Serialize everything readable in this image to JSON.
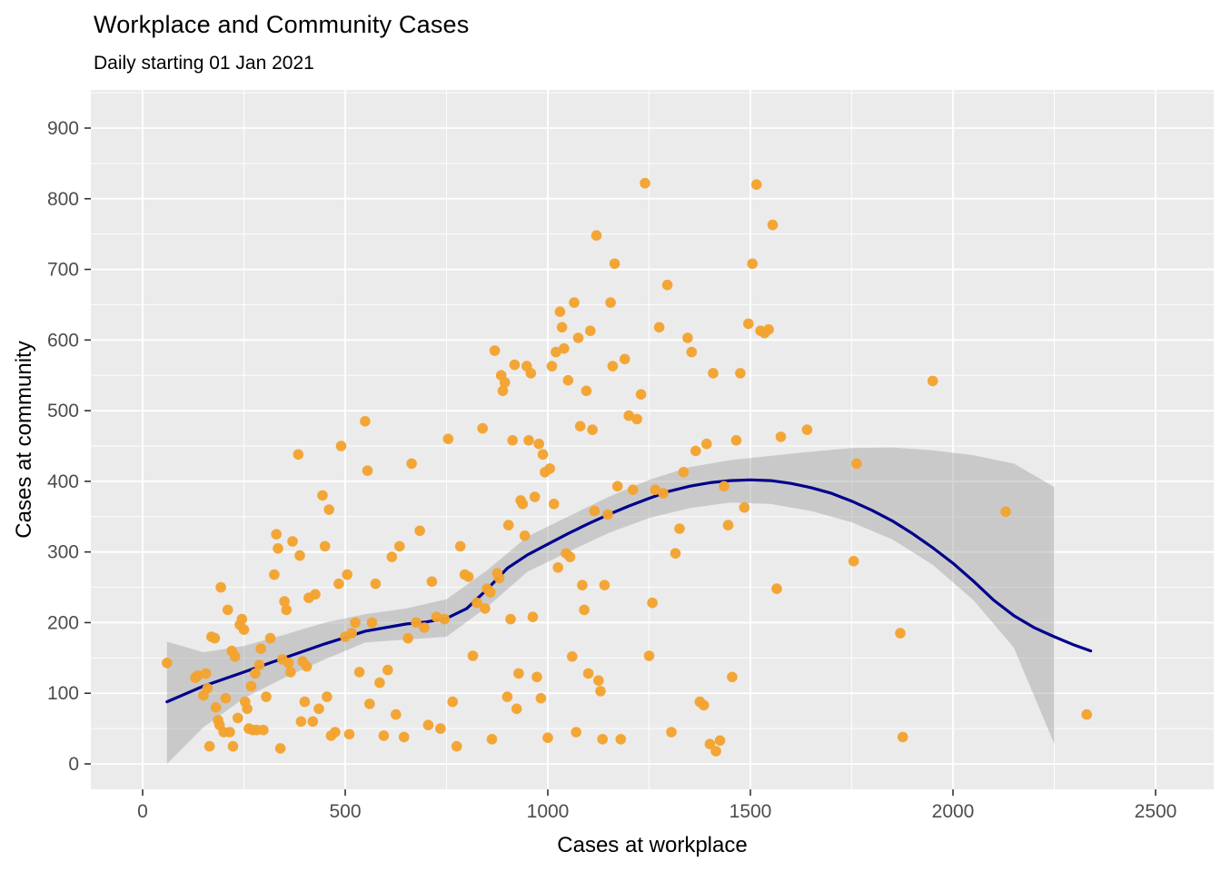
{
  "title": "Workplace and Community Cases",
  "subtitle": "Daily starting 01 Jan 2021",
  "chart_data": {
    "type": "scatter",
    "title": "Workplace and Community Cases",
    "subtitle": "Daily starting 01 Jan 2021",
    "xlabel": "Cases at workplace",
    "ylabel": "Cases at community",
    "xlim": [
      -130,
      2640
    ],
    "ylim": [
      -35,
      950
    ],
    "x_ticks": [
      0,
      500,
      1000,
      1500,
      2000,
      2500
    ],
    "y_ticks": [
      0,
      100,
      200,
      300,
      400,
      500,
      600,
      700,
      800,
      900
    ],
    "x_minor_ticks": [
      250,
      750,
      1250,
      1750,
      2250
    ],
    "y_minor_ticks": [
      50,
      150,
      250,
      350,
      450,
      550,
      650,
      750,
      850,
      950
    ],
    "grid": true,
    "legend": "none",
    "colors": {
      "point": "#F3A32F",
      "line": "#00008B",
      "ribbon": "#9B9B9B",
      "ribbon_opacity": 0.42,
      "panel": "#EBEBEB",
      "grid": "#FFFFFF",
      "tick_text": "#4D4D4D",
      "tick_mark": "#333333"
    },
    "points": [
      [
        60,
        143
      ],
      [
        130,
        122
      ],
      [
        136,
        125
      ],
      [
        150,
        97
      ],
      [
        156,
        128
      ],
      [
        160,
        107
      ],
      [
        165,
        25
      ],
      [
        170,
        180
      ],
      [
        178,
        178
      ],
      [
        181,
        80
      ],
      [
        186,
        62
      ],
      [
        190,
        55
      ],
      [
        193,
        250
      ],
      [
        200,
        45
      ],
      [
        205,
        93
      ],
      [
        210,
        218
      ],
      [
        215,
        45
      ],
      [
        220,
        160
      ],
      [
        223,
        25
      ],
      [
        228,
        152
      ],
      [
        235,
        65
      ],
      [
        240,
        197
      ],
      [
        245,
        205
      ],
      [
        250,
        190
      ],
      [
        253,
        88
      ],
      [
        258,
        78
      ],
      [
        262,
        50
      ],
      [
        268,
        110
      ],
      [
        272,
        48
      ],
      [
        278,
        128
      ],
      [
        282,
        48
      ],
      [
        288,
        140
      ],
      [
        292,
        163
      ],
      [
        298,
        48
      ],
      [
        305,
        95
      ],
      [
        315,
        178
      ],
      [
        325,
        268
      ],
      [
        330,
        325
      ],
      [
        334,
        305
      ],
      [
        340,
        22
      ],
      [
        345,
        148
      ],
      [
        350,
        230
      ],
      [
        355,
        218
      ],
      [
        360,
        143
      ],
      [
        365,
        130
      ],
      [
        370,
        315
      ],
      [
        384,
        438
      ],
      [
        388,
        295
      ],
      [
        391,
        60
      ],
      [
        395,
        145
      ],
      [
        400,
        88
      ],
      [
        405,
        138
      ],
      [
        410,
        235
      ],
      [
        420,
        60
      ],
      [
        426,
        240
      ],
      [
        435,
        78
      ],
      [
        444,
        380
      ],
      [
        450,
        308
      ],
      [
        455,
        95
      ],
      [
        460,
        360
      ],
      [
        465,
        40
      ],
      [
        475,
        45
      ],
      [
        484,
        255
      ],
      [
        490,
        450
      ],
      [
        500,
        180
      ],
      [
        505,
        268
      ],
      [
        510,
        42
      ],
      [
        516,
        185
      ],
      [
        525,
        200
      ],
      [
        535,
        130
      ],
      [
        549,
        485
      ],
      [
        555,
        415
      ],
      [
        560,
        85
      ],
      [
        566,
        200
      ],
      [
        575,
        255
      ],
      [
        585,
        115
      ],
      [
        595,
        40
      ],
      [
        605,
        133
      ],
      [
        615,
        293
      ],
      [
        625,
        70
      ],
      [
        634,
        308
      ],
      [
        645,
        38
      ],
      [
        655,
        178
      ],
      [
        664,
        425
      ],
      [
        675,
        200
      ],
      [
        684,
        330
      ],
      [
        695,
        193
      ],
      [
        705,
        55
      ],
      [
        714,
        258
      ],
      [
        725,
        208
      ],
      [
        735,
        50
      ],
      [
        745,
        205
      ],
      [
        754,
        460
      ],
      [
        765,
        88
      ],
      [
        775,
        25
      ],
      [
        784,
        308
      ],
      [
        795,
        268
      ],
      [
        804,
        265
      ],
      [
        815,
        153
      ],
      [
        825,
        228
      ],
      [
        839,
        475
      ],
      [
        845,
        220
      ],
      [
        850,
        248
      ],
      [
        858,
        243
      ],
      [
        862,
        35
      ],
      [
        869,
        585
      ],
      [
        875,
        270
      ],
      [
        880,
        263
      ],
      [
        885,
        550
      ],
      [
        889,
        528
      ],
      [
        894,
        540
      ],
      [
        900,
        95
      ],
      [
        903,
        338
      ],
      [
        908,
        205
      ],
      [
        913,
        458
      ],
      [
        918,
        565
      ],
      [
        923,
        78
      ],
      [
        928,
        128
      ],
      [
        933,
        373
      ],
      [
        938,
        368
      ],
      [
        943,
        323
      ],
      [
        948,
        563
      ],
      [
        953,
        458
      ],
      [
        958,
        553
      ],
      [
        963,
        208
      ],
      [
        968,
        378
      ],
      [
        973,
        123
      ],
      [
        978,
        453
      ],
      [
        983,
        93
      ],
      [
        988,
        438
      ],
      [
        993,
        413
      ],
      [
        1000,
        37
      ],
      [
        1005,
        418
      ],
      [
        1010,
        563
      ],
      [
        1015,
        368
      ],
      [
        1020,
        583
      ],
      [
        1025,
        278
      ],
      [
        1030,
        640
      ],
      [
        1035,
        618
      ],
      [
        1040,
        588
      ],
      [
        1045,
        298
      ],
      [
        1050,
        543
      ],
      [
        1055,
        293
      ],
      [
        1060,
        152
      ],
      [
        1065,
        653
      ],
      [
        1070,
        45
      ],
      [
        1075,
        603
      ],
      [
        1080,
        478
      ],
      [
        1085,
        253
      ],
      [
        1090,
        218
      ],
      [
        1095,
        528
      ],
      [
        1100,
        128
      ],
      [
        1105,
        613
      ],
      [
        1110,
        473
      ],
      [
        1115,
        358
      ],
      [
        1120,
        748
      ],
      [
        1125,
        118
      ],
      [
        1130,
        103
      ],
      [
        1135,
        35
      ],
      [
        1140,
        253
      ],
      [
        1148,
        353
      ],
      [
        1155,
        653
      ],
      [
        1160,
        563
      ],
      [
        1165,
        708
      ],
      [
        1172,
        393
      ],
      [
        1180,
        35
      ],
      [
        1190,
        573
      ],
      [
        1200,
        493
      ],
      [
        1210,
        388
      ],
      [
        1220,
        488
      ],
      [
        1230,
        523
      ],
      [
        1240,
        822
      ],
      [
        1250,
        153
      ],
      [
        1258,
        228
      ],
      [
        1265,
        388
      ],
      [
        1275,
        618
      ],
      [
        1285,
        383
      ],
      [
        1295,
        678
      ],
      [
        1305,
        45
      ],
      [
        1315,
        298
      ],
      [
        1325,
        333
      ],
      [
        1335,
        413
      ],
      [
        1345,
        603
      ],
      [
        1355,
        583
      ],
      [
        1365,
        443
      ],
      [
        1375,
        88
      ],
      [
        1385,
        83
      ],
      [
        1392,
        453
      ],
      [
        1400,
        28
      ],
      [
        1408,
        553
      ],
      [
        1415,
        18
      ],
      [
        1425,
        33
      ],
      [
        1435,
        393
      ],
      [
        1445,
        338
      ],
      [
        1455,
        123
      ],
      [
        1465,
        458
      ],
      [
        1475,
        553
      ],
      [
        1485,
        363
      ],
      [
        1495,
        623
      ],
      [
        1505,
        708
      ],
      [
        1515,
        820
      ],
      [
        1525,
        613
      ],
      [
        1535,
        610
      ],
      [
        1545,
        615
      ],
      [
        1555,
        763
      ],
      [
        1565,
        248
      ],
      [
        1575,
        463
      ],
      [
        1640,
        473
      ],
      [
        1755,
        287
      ],
      [
        1762,
        425
      ],
      [
        1870,
        185
      ],
      [
        1876,
        38
      ],
      [
        1950,
        542
      ],
      [
        2130,
        357
      ],
      [
        2330,
        70
      ]
    ],
    "smooth_line": [
      [
        60,
        88
      ],
      [
        150,
        110
      ],
      [
        250,
        130
      ],
      [
        350,
        150
      ],
      [
        450,
        170
      ],
      [
        550,
        188
      ],
      [
        650,
        198
      ],
      [
        700,
        201
      ],
      [
        750,
        206
      ],
      [
        800,
        220
      ],
      [
        850,
        247
      ],
      [
        900,
        277
      ],
      [
        950,
        296
      ],
      [
        1000,
        311
      ],
      [
        1050,
        326
      ],
      [
        1100,
        340
      ],
      [
        1150,
        353
      ],
      [
        1200,
        365
      ],
      [
        1250,
        376
      ],
      [
        1300,
        386
      ],
      [
        1350,
        393
      ],
      [
        1400,
        398
      ],
      [
        1450,
        401
      ],
      [
        1500,
        402
      ],
      [
        1550,
        401
      ],
      [
        1600,
        397
      ],
      [
        1650,
        391
      ],
      [
        1700,
        383
      ],
      [
        1750,
        372
      ],
      [
        1800,
        359
      ],
      [
        1850,
        344
      ],
      [
        1900,
        326
      ],
      [
        1950,
        306
      ],
      [
        2000,
        284
      ],
      [
        2050,
        259
      ],
      [
        2100,
        232
      ],
      [
        2150,
        210
      ],
      [
        2200,
        193
      ],
      [
        2250,
        180
      ],
      [
        2300,
        168
      ],
      [
        2340,
        160
      ]
    ],
    "ribbon": [
      [
        60,
        0,
        173
      ],
      [
        150,
        52,
        158
      ],
      [
        250,
        93,
        167
      ],
      [
        350,
        122,
        183
      ],
      [
        450,
        148,
        200
      ],
      [
        550,
        172,
        212
      ],
      [
        650,
        176,
        220
      ],
      [
        750,
        180,
        233
      ],
      [
        850,
        222,
        274
      ],
      [
        950,
        272,
        322
      ],
      [
        1050,
        300,
        350
      ],
      [
        1150,
        327,
        378
      ],
      [
        1250,
        348,
        402
      ],
      [
        1350,
        362,
        420
      ],
      [
        1450,
        370,
        430
      ],
      [
        1550,
        368,
        436
      ],
      [
        1650,
        358,
        442
      ],
      [
        1750,
        342,
        447
      ],
      [
        1850,
        318,
        448
      ],
      [
        1950,
        282,
        444
      ],
      [
        2050,
        232,
        437
      ],
      [
        2150,
        165,
        425
      ],
      [
        2250,
        28,
        392
      ]
    ]
  }
}
